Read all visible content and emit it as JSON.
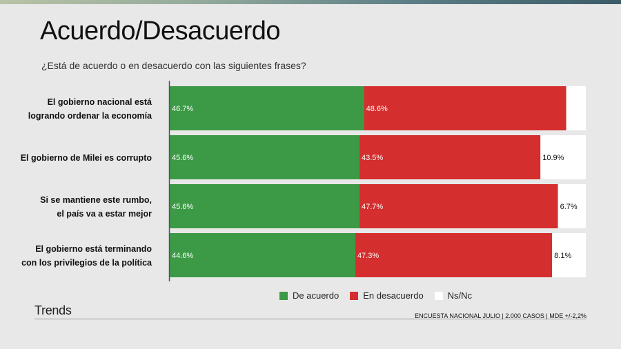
{
  "header": {
    "title": "Acuerdo/Desacuerdo",
    "subtitle": "¿Está de acuerdo o en desacuerdo con las siguientes frases?"
  },
  "colors": {
    "acuerdo": "#3c9a46",
    "desacuerdo": "#d42e2e",
    "nsnc": "#ffffff"
  },
  "chart_data": {
    "type": "bar",
    "orientation": "horizontal-stacked-100",
    "title": "Acuerdo/Desacuerdo",
    "categories": [
      [
        "El gobierno nacional está",
        "logrando ordenar la economía"
      ],
      [
        "El gobierno de Milei es corrupto"
      ],
      [
        "Si se mantiene este rumbo,",
        "el país va a estar mejor"
      ],
      [
        "El gobierno está terminando",
        "con los privilegios de la política"
      ]
    ],
    "series": [
      {
        "name": "De acuerdo",
        "values": [
          46.7,
          45.6,
          45.6,
          44.6
        ],
        "labels": [
          "46.7%",
          "45.6%",
          "45.6%",
          "44.6%"
        ]
      },
      {
        "name": "En desacuerdo",
        "values": [
          48.6,
          43.5,
          47.7,
          47.3
        ],
        "labels": [
          "48.6%",
          "43.5%",
          "47.7%",
          "47.3%"
        ]
      },
      {
        "name": "Ns/Nc",
        "values": [
          4.7,
          10.9,
          6.7,
          8.1
        ],
        "labels": [
          "",
          "10.9%",
          "6.7%",
          "8.1%"
        ]
      }
    ],
    "xlim": [
      0,
      100
    ],
    "legend_position": "bottom"
  },
  "legend": {
    "items": [
      "De acuerdo",
      "En desacuerdo",
      "Ns/Nc"
    ]
  },
  "footer": {
    "brand": "Trends",
    "note": "ENCUESTA NACIONAL JULIO | 2.000 CASOS | MDE +/-2,2%"
  }
}
